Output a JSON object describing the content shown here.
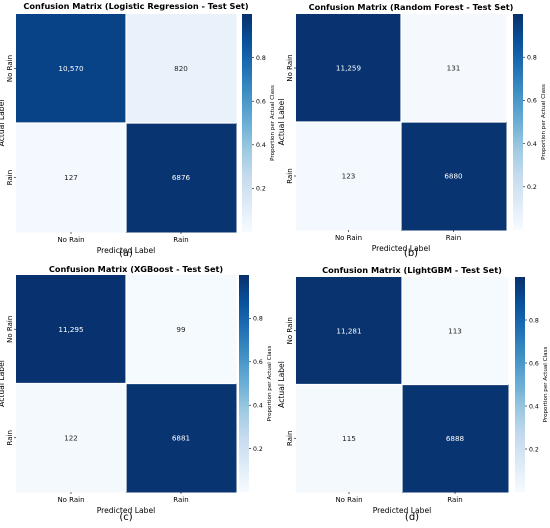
{
  "figure": {
    "colormap": {
      "stops": [
        "#f7fbff",
        "#deebf7",
        "#c6dbef",
        "#9ecae1",
        "#6baed6",
        "#4292c6",
        "#2171b5",
        "#08519c",
        "#08306b"
      ],
      "text_dark": "#262626",
      "text_light": "#ffffff"
    },
    "common": {
      "xlabel": "Predicted Label",
      "ylabel": "Actual Label",
      "colorbar_label": "Proportion per Actual Class",
      "colorbar_ticks": [
        "0.2",
        "0.4",
        "0.6",
        "0.8"
      ],
      "colorbar_tick_values": [
        0.2,
        0.4,
        0.6,
        0.8
      ],
      "classes": [
        "No Rain",
        "Rain"
      ]
    }
  },
  "chart_data": [
    {
      "type": "heatmap",
      "panel": "(a)",
      "title": "Confusion Matrix (Logistic Regression - Test Set)",
      "xlabel": "Predicted Label",
      "ylabel": "Actual Label",
      "x_categories": [
        "No Rain",
        "Rain"
      ],
      "y_categories": [
        "No Rain",
        "Rain"
      ],
      "counts": [
        [
          10570,
          820
        ],
        [
          127,
          6876
        ]
      ],
      "cell_labels": [
        [
          "10,570",
          "820"
        ],
        [
          "127",
          "6876"
        ]
      ],
      "proportions": [
        [
          0.928,
          0.072
        ],
        [
          0.018,
          0.982
        ]
      ],
      "colorbar": {
        "label": "Proportion per Actual Class",
        "ticks": [
          0.2,
          0.4,
          0.6,
          0.8
        ]
      }
    },
    {
      "type": "heatmap",
      "panel": "(b)",
      "title": "Confusion Matrix (Random Forest - Test Set)",
      "xlabel": "Predicted Label",
      "ylabel": "Actual Label",
      "x_categories": [
        "No Rain",
        "Rain"
      ],
      "y_categories": [
        "No Rain",
        "Rain"
      ],
      "counts": [
        [
          11259,
          131
        ],
        [
          123,
          6880
        ]
      ],
      "cell_labels": [
        [
          "11,259",
          "131"
        ],
        [
          "123",
          "6880"
        ]
      ],
      "proportions": [
        [
          0.988,
          0.012
        ],
        [
          0.018,
          0.982
        ]
      ],
      "colorbar": {
        "label": "Proportion per Actual Class",
        "ticks": [
          0.2,
          0.4,
          0.6,
          0.8
        ]
      }
    },
    {
      "type": "heatmap",
      "panel": "(c)",
      "title": "Confusion Matrix (XGBoost - Test Set)",
      "xlabel": "Predicted Label",
      "ylabel": "Actual Label",
      "x_categories": [
        "No Rain",
        "Rain"
      ],
      "y_categories": [
        "No Rain",
        "Rain"
      ],
      "counts": [
        [
          11295,
          99
        ],
        [
          122,
          6881
        ]
      ],
      "cell_labels": [
        [
          "11,295",
          "99"
        ],
        [
          "122",
          "6881"
        ]
      ],
      "proportions": [
        [
          0.991,
          0.009
        ],
        [
          0.017,
          0.983
        ]
      ],
      "colorbar": {
        "label": "Proportion per Actual Class",
        "ticks": [
          0.2,
          0.4,
          0.6,
          0.8
        ]
      }
    },
    {
      "type": "heatmap",
      "panel": "(d)",
      "title": "Confusion Matrix (LightGBM - Test Set)",
      "xlabel": "Predicted Label",
      "ylabel": "Actual Label",
      "x_categories": [
        "No Rain",
        "Rain"
      ],
      "y_categories": [
        "No Rain",
        "Rain"
      ],
      "counts": [
        [
          11281,
          113
        ],
        [
          115,
          6888
        ]
      ],
      "cell_labels": [
        [
          "11,281",
          "113"
        ],
        [
          "115",
          "6888"
        ]
      ],
      "proportions": [
        [
          0.99,
          0.01
        ],
        [
          0.016,
          0.984
        ]
      ],
      "colorbar": {
        "label": "Proportion per Actual Class",
        "ticks": [
          0.2,
          0.4,
          0.6,
          0.8
        ]
      }
    }
  ]
}
